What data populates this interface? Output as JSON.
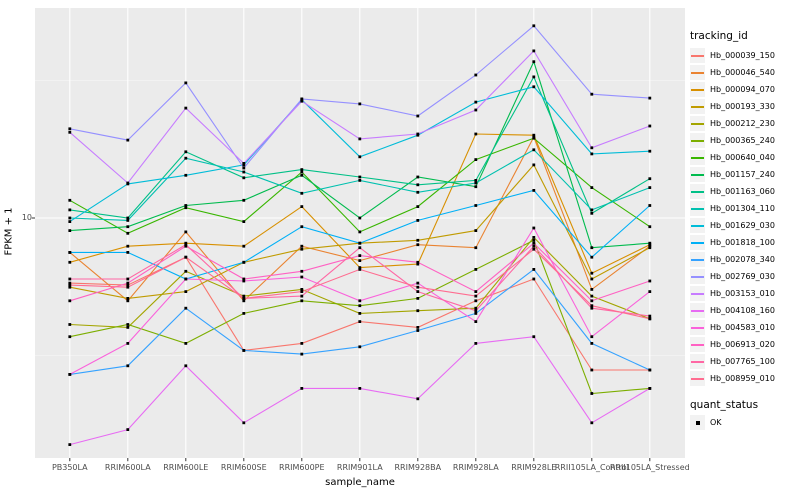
{
  "figure": {
    "panel_bg": "#EBEBEB",
    "grid_color": "#FFFFFF",
    "tick_color": "#333333",
    "axis_text_color": "#4D4D4D"
  },
  "axes": {
    "x_title": "sample_name",
    "y_title": "FPKM + 1",
    "y_tick_labels": [
      "10"
    ]
  },
  "legend": {
    "tracking_title": "tracking_id",
    "quant_title": "quant_status",
    "quant_items": [
      {
        "label": "OK",
        "marker": "black-square"
      }
    ]
  },
  "chart_data": {
    "type": "line",
    "title": "",
    "xlabel": "sample_name",
    "ylabel": "FPKM + 1",
    "y_scale": "log10",
    "y_major_gridline": 10,
    "y_minor_gridlines": [
      3.16,
      31.6
    ],
    "grid": "on",
    "legend_position": "right",
    "point_marker": "black-square",
    "quant_status": "OK",
    "categories": [
      "PB350LA",
      "RRIM600LA",
      "RRIM600LE",
      "RRIM600SE",
      "RRIM600PE",
      "RRIM901LA",
      "RRIM928BA",
      "RRIM928LA",
      "RRIM928LE",
      "RRII105LA_Control",
      "RRII105LA_Stressed"
    ],
    "series": [
      {
        "name": "Hb_000039_150",
        "color": "#F8766D",
        "values": [
          5.8,
          5.7,
          7.2,
          3.3,
          3.5,
          4.2,
          4.0,
          5.0,
          6.0,
          2.8,
          2.8
        ]
      },
      {
        "name": "Hb_000046_540",
        "color": "#EA8331",
        "values": [
          7.5,
          5.0,
          8.9,
          5.0,
          7.9,
          7.0,
          8.0,
          7.8,
          19.7,
          5.5,
          7.9
        ]
      },
      {
        "name": "Hb_000094_070",
        "color": "#D89000",
        "values": [
          6.9,
          7.9,
          8.1,
          7.9,
          11.0,
          6.6,
          6.8,
          20.2,
          20.0,
          6.3,
          8.0
        ]
      },
      {
        "name": "Hb_000193_330",
        "color": "#C09B00",
        "values": [
          5.6,
          5.1,
          5.4,
          6.9,
          7.7,
          8.1,
          8.3,
          9.0,
          15.6,
          6.0,
          7.8
        ]
      },
      {
        "name": "Hb_000212_230",
        "color": "#A3A500",
        "values": [
          4.1,
          4.0,
          6.4,
          5.2,
          5.5,
          4.5,
          4.6,
          4.7,
          8.5,
          5.2,
          4.3
        ]
      },
      {
        "name": "Hb_000365_240",
        "color": "#7CAE00",
        "values": [
          3.7,
          4.1,
          3.5,
          4.5,
          5.0,
          4.8,
          5.1,
          6.5,
          8.3,
          2.3,
          2.4
        ]
      },
      {
        "name": "Hb_000640_040",
        "color": "#39B600",
        "values": [
          11.6,
          8.8,
          10.9,
          9.7,
          14.7,
          8.9,
          11.0,
          16.3,
          19.5,
          12.9,
          9.3
        ]
      },
      {
        "name": "Hb_001157_240",
        "color": "#00BB4E",
        "values": [
          9.0,
          9.3,
          11.1,
          11.6,
          14.3,
          10.0,
          14.1,
          13.0,
          37.0,
          7.8,
          8.1
        ]
      },
      {
        "name": "Hb_001163_060",
        "color": "#00C087",
        "values": [
          10.7,
          10.0,
          17.4,
          14.0,
          15.0,
          14.1,
          13.2,
          13.7,
          32.6,
          10.4,
          13.9
        ]
      },
      {
        "name": "Hb_001304_110",
        "color": "#00C0AF",
        "values": [
          10.0,
          9.8,
          16.5,
          14.7,
          12.3,
          13.7,
          12.4,
          13.4,
          17.7,
          10.7,
          12.9
        ]
      },
      {
        "name": "Hb_001629_030",
        "color": "#00BCD8",
        "values": [
          9.7,
          13.3,
          14.3,
          15.6,
          26.9,
          16.7,
          20.0,
          26.4,
          30.0,
          17.1,
          17.5
        ]
      },
      {
        "name": "Hb_001818_100",
        "color": "#00B0F6",
        "values": [
          7.5,
          7.5,
          6.0,
          6.9,
          9.3,
          8.1,
          9.8,
          11.1,
          12.6,
          7.2,
          11.1
        ]
      },
      {
        "name": "Hb_002078_340",
        "color": "#35A2FF",
        "values": [
          2.7,
          2.9,
          4.7,
          3.3,
          3.2,
          3.4,
          3.9,
          4.5,
          6.5,
          3.5,
          2.8
        ]
      },
      {
        "name": "Hb_002769_030",
        "color": "#9590FF",
        "values": [
          21.1,
          19.2,
          31.0,
          15.2,
          27.1,
          26.0,
          23.5,
          33.1,
          50.0,
          28.2,
          27.3
        ]
      },
      {
        "name": "Hb_003153_010",
        "color": "#C77CFF",
        "values": [
          20.5,
          13.4,
          25.1,
          15.8,
          26.6,
          19.4,
          20.2,
          24.7,
          40.5,
          18.0,
          21.6
        ]
      },
      {
        "name": "Hb_004108_160",
        "color": "#E76BF3",
        "values": [
          1.5,
          1.7,
          2.9,
          1.8,
          2.4,
          2.4,
          2.2,
          3.5,
          3.7,
          1.8,
          2.4
        ]
      },
      {
        "name": "Hb_004583_010",
        "color": "#FA62DB",
        "values": [
          2.7,
          3.5,
          6.0,
          5.9,
          6.1,
          5.0,
          5.8,
          4.2,
          9.2,
          3.7,
          5.4
        ]
      },
      {
        "name": "Hb_006913_020",
        "color": "#FF61C3",
        "values": [
          5.0,
          5.8,
          7.9,
          6.0,
          6.4,
          7.3,
          6.9,
          5.4,
          8.1,
          5.0,
          5.9
        ]
      },
      {
        "name": "Hb_007765_100",
        "color": "#FF67A4",
        "values": [
          6.0,
          6.0,
          8.0,
          5.1,
          5.2,
          7.8,
          5.4,
          4.6,
          7.9,
          4.7,
          4.4
        ]
      },
      {
        "name": "Hb_008959_010",
        "color": "#FF6C90",
        "values": [
          5.7,
          5.6,
          7.2,
          5.1,
          5.4,
          6.5,
          5.6,
          5.2,
          7.7,
          4.8,
          4.3
        ]
      }
    ]
  }
}
